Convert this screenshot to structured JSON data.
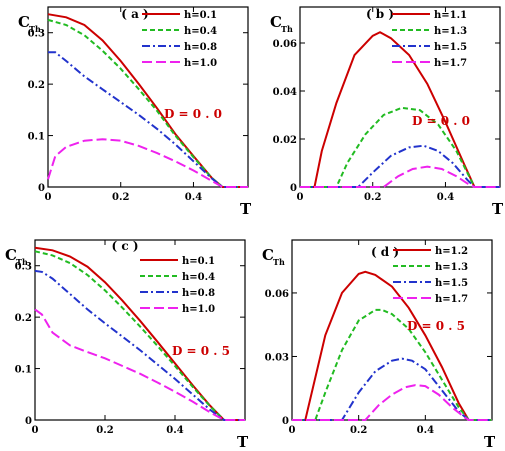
{
  "chart_data": [
    {
      "type": "line",
      "panel_label": "( a )",
      "xlabel": "T",
      "ylabel": "C",
      "ylabel_sub": "Th",
      "xlim": [
        0,
        0.55
      ],
      "ylim": [
        0,
        0.35
      ],
      "xticks": [
        0,
        0.2,
        0.4
      ],
      "xtick_labels": [
        "0",
        "0.2",
        "0.4"
      ],
      "yticks": [
        0,
        0.1,
        0.2,
        0.3
      ],
      "ytick_labels": [
        "0",
        "0.1",
        "0.2",
        "0.3"
      ],
      "annotation": "D = 0 . 0",
      "legend_position": "top-right",
      "series": [
        {
          "name": "h=0.1",
          "color": "#cc0000",
          "dash": "solid",
          "x": [
            0,
            0.05,
            0.1,
            0.15,
            0.2,
            0.25,
            0.3,
            0.35,
            0.4,
            0.45,
            0.48,
            0.5,
            0.55
          ],
          "y": [
            0.336,
            0.33,
            0.315,
            0.285,
            0.245,
            0.2,
            0.153,
            0.103,
            0.06,
            0.018,
            0.0,
            0.0,
            0.0
          ]
        },
        {
          "name": "h=0.4",
          "color": "#22bb22",
          "dash": "5,3",
          "x": [
            0,
            0.05,
            0.1,
            0.15,
            0.2,
            0.25,
            0.3,
            0.35,
            0.4,
            0.45,
            0.48,
            0.5,
            0.55
          ],
          "y": [
            0.325,
            0.315,
            0.295,
            0.265,
            0.23,
            0.19,
            0.148,
            0.1,
            0.058,
            0.018,
            0.0,
            0.0,
            0.0
          ]
        },
        {
          "name": "h=0.8",
          "color": "#2233cc",
          "dash": "8,3,2,3",
          "x": [
            0,
            0.02,
            0.05,
            0.1,
            0.15,
            0.2,
            0.25,
            0.3,
            0.35,
            0.4,
            0.45,
            0.48,
            0.5,
            0.55
          ],
          "y": [
            0.262,
            0.262,
            0.245,
            0.215,
            0.19,
            0.165,
            0.14,
            0.113,
            0.083,
            0.05,
            0.017,
            0.0,
            0.0,
            0.0
          ]
        },
        {
          "name": "h=1.0",
          "color": "#ee22ee",
          "dash": "10,4",
          "x": [
            0,
            0.02,
            0.05,
            0.1,
            0.15,
            0.2,
            0.25,
            0.3,
            0.35,
            0.4,
            0.45,
            0.48,
            0.5,
            0.55
          ],
          "y": [
            0.015,
            0.06,
            0.078,
            0.09,
            0.093,
            0.09,
            0.08,
            0.066,
            0.05,
            0.032,
            0.012,
            0.0,
            0.0,
            0.0
          ]
        }
      ]
    },
    {
      "type": "line",
      "panel_label": "( b )",
      "xlabel": "T",
      "ylabel": "C",
      "ylabel_sub": "Th",
      "xlim": [
        0,
        0.55
      ],
      "ylim": [
        0,
        0.075
      ],
      "xticks": [
        0,
        0.2,
        0.4
      ],
      "xtick_labels": [
        "0",
        "0.2",
        "0.4"
      ],
      "yticks": [
        0,
        0.02,
        0.04,
        0.06
      ],
      "ytick_labels": [
        "0",
        "0.02",
        "0.04",
        "0.06"
      ],
      "annotation": "D = 0 . 0",
      "legend_position": "top-right",
      "series": [
        {
          "name": "h=1.1",
          "color": "#cc0000",
          "dash": "solid",
          "x": [
            0,
            0.04,
            0.06,
            0.1,
            0.15,
            0.2,
            0.22,
            0.25,
            0.3,
            0.35,
            0.4,
            0.45,
            0.48,
            0.55
          ],
          "y": [
            0,
            0.0,
            0.015,
            0.035,
            0.055,
            0.063,
            0.0645,
            0.062,
            0.055,
            0.043,
            0.027,
            0.01,
            0.0,
            0.0
          ]
        },
        {
          "name": "h=1.3",
          "color": "#22bb22",
          "dash": "5,3",
          "x": [
            0,
            0.1,
            0.13,
            0.18,
            0.23,
            0.28,
            0.33,
            0.38,
            0.43,
            0.47,
            0.48,
            0.55
          ],
          "y": [
            0,
            0.0,
            0.01,
            0.022,
            0.03,
            0.033,
            0.032,
            0.026,
            0.015,
            0.003,
            0.0,
            0.0
          ]
        },
        {
          "name": "h=1.5",
          "color": "#2233cc",
          "dash": "8,3,2,3",
          "x": [
            0,
            0.16,
            0.2,
            0.25,
            0.3,
            0.34,
            0.38,
            0.42,
            0.46,
            0.48,
            0.55
          ],
          "y": [
            0,
            0.0,
            0.006,
            0.013,
            0.0165,
            0.0172,
            0.015,
            0.01,
            0.003,
            0.0,
            0.0
          ]
        },
        {
          "name": "h=1.7",
          "color": "#ee22ee",
          "dash": "10,4",
          "x": [
            0,
            0.23,
            0.27,
            0.31,
            0.35,
            0.39,
            0.43,
            0.46,
            0.48,
            0.55
          ],
          "y": [
            0,
            0.0,
            0.0045,
            0.0075,
            0.0085,
            0.0075,
            0.0045,
            0.0015,
            0.0,
            0.0
          ]
        }
      ]
    },
    {
      "type": "line",
      "panel_label": "( c )",
      "xlabel": "T",
      "ylabel": "C",
      "ylabel_sub": "Th",
      "xlim": [
        0,
        0.6
      ],
      "ylim": [
        0,
        0.35
      ],
      "xticks": [
        0,
        0.2,
        0.4
      ],
      "xtick_labels": [
        "0",
        "0.2",
        "0.4"
      ],
      "yticks": [
        0,
        0.1,
        0.2,
        0.3
      ],
      "ytick_labels": [
        "0",
        "0.1",
        "0.2",
        "0.3"
      ],
      "annotation": "D = 0 . 5",
      "legend_position": "top-right",
      "series": [
        {
          "name": "h=0.1",
          "color": "#cc0000",
          "dash": "solid",
          "x": [
            0,
            0.05,
            0.1,
            0.15,
            0.2,
            0.25,
            0.3,
            0.35,
            0.4,
            0.45,
            0.5,
            0.54,
            0.6
          ],
          "y": [
            0.335,
            0.33,
            0.318,
            0.298,
            0.268,
            0.232,
            0.193,
            0.152,
            0.11,
            0.068,
            0.028,
            0.0,
            0.0
          ]
        },
        {
          "name": "h=0.4",
          "color": "#22bb22",
          "dash": "5,3",
          "x": [
            0,
            0.05,
            0.1,
            0.15,
            0.2,
            0.25,
            0.3,
            0.35,
            0.4,
            0.45,
            0.5,
            0.54,
            0.6
          ],
          "y": [
            0.328,
            0.32,
            0.305,
            0.282,
            0.252,
            0.218,
            0.182,
            0.144,
            0.105,
            0.065,
            0.027,
            0.0,
            0.0
          ]
        },
        {
          "name": "h=0.8",
          "color": "#2233cc",
          "dash": "8,3,2,3",
          "x": [
            0,
            0.02,
            0.05,
            0.1,
            0.15,
            0.2,
            0.25,
            0.3,
            0.35,
            0.4,
            0.45,
            0.5,
            0.54,
            0.6
          ],
          "y": [
            0.29,
            0.288,
            0.275,
            0.245,
            0.215,
            0.188,
            0.162,
            0.136,
            0.108,
            0.08,
            0.05,
            0.02,
            0.0,
            0.0
          ]
        },
        {
          "name": "h=1.0",
          "color": "#ee22ee",
          "dash": "10,4",
          "x": [
            0,
            0.02,
            0.05,
            0.1,
            0.15,
            0.2,
            0.25,
            0.3,
            0.35,
            0.4,
            0.45,
            0.5,
            0.54,
            0.6
          ],
          "y": [
            0.215,
            0.205,
            0.17,
            0.145,
            0.132,
            0.12,
            0.105,
            0.09,
            0.073,
            0.055,
            0.036,
            0.015,
            0.0,
            0.0
          ]
        }
      ]
    },
    {
      "type": "line",
      "panel_label": "( d )",
      "xlabel": "T",
      "ylabel": "C",
      "ylabel_sub": "Th",
      "xlim": [
        0,
        0.6
      ],
      "ylim": [
        0,
        0.085
      ],
      "xticks": [
        0,
        0.2,
        0.4
      ],
      "xtick_labels": [
        "0",
        "0.2",
        "0.4"
      ],
      "yticks": [
        0,
        0.03,
        0.06
      ],
      "ytick_labels": [
        "0",
        "0.03",
        "0.06"
      ],
      "annotation": "D = 0 . 5",
      "legend_position": "top-right",
      "series": [
        {
          "name": "h=1.2",
          "color": "#cc0000",
          "dash": "solid",
          "x": [
            0,
            0.04,
            0.07,
            0.1,
            0.15,
            0.2,
            0.22,
            0.25,
            0.3,
            0.35,
            0.4,
            0.45,
            0.5,
            0.53,
            0.6
          ],
          "y": [
            0,
            0.0,
            0.02,
            0.04,
            0.06,
            0.069,
            0.07,
            0.0685,
            0.063,
            0.053,
            0.04,
            0.025,
            0.008,
            0.0,
            0.0
          ]
        },
        {
          "name": "h=1.3",
          "color": "#22bb22",
          "dash": "5,3",
          "x": [
            0,
            0.07,
            0.1,
            0.15,
            0.2,
            0.25,
            0.27,
            0.3,
            0.35,
            0.4,
            0.45,
            0.5,
            0.53,
            0.6
          ],
          "y": [
            0,
            0.0,
            0.013,
            0.033,
            0.047,
            0.052,
            0.052,
            0.05,
            0.043,
            0.032,
            0.019,
            0.006,
            0.0,
            0.0
          ]
        },
        {
          "name": "h=1.5",
          "color": "#2233cc",
          "dash": "8,3,2,3",
          "x": [
            0,
            0.15,
            0.2,
            0.25,
            0.3,
            0.33,
            0.36,
            0.4,
            0.45,
            0.5,
            0.53,
            0.6
          ],
          "y": [
            0,
            0.0,
            0.013,
            0.023,
            0.028,
            0.029,
            0.028,
            0.024,
            0.014,
            0.004,
            0.0,
            0.0
          ]
        },
        {
          "name": "h=1.7",
          "color": "#ee22ee",
          "dash": "10,4",
          "x": [
            0,
            0.22,
            0.26,
            0.3,
            0.34,
            0.37,
            0.4,
            0.44,
            0.48,
            0.52,
            0.53,
            0.6
          ],
          "y": [
            0,
            0.0,
            0.007,
            0.012,
            0.0155,
            0.0165,
            0.016,
            0.012,
            0.006,
            0.001,
            0.0,
            0.0
          ]
        }
      ]
    }
  ],
  "panel_title_color": "#000000",
  "annotation_color": "#cc0000"
}
